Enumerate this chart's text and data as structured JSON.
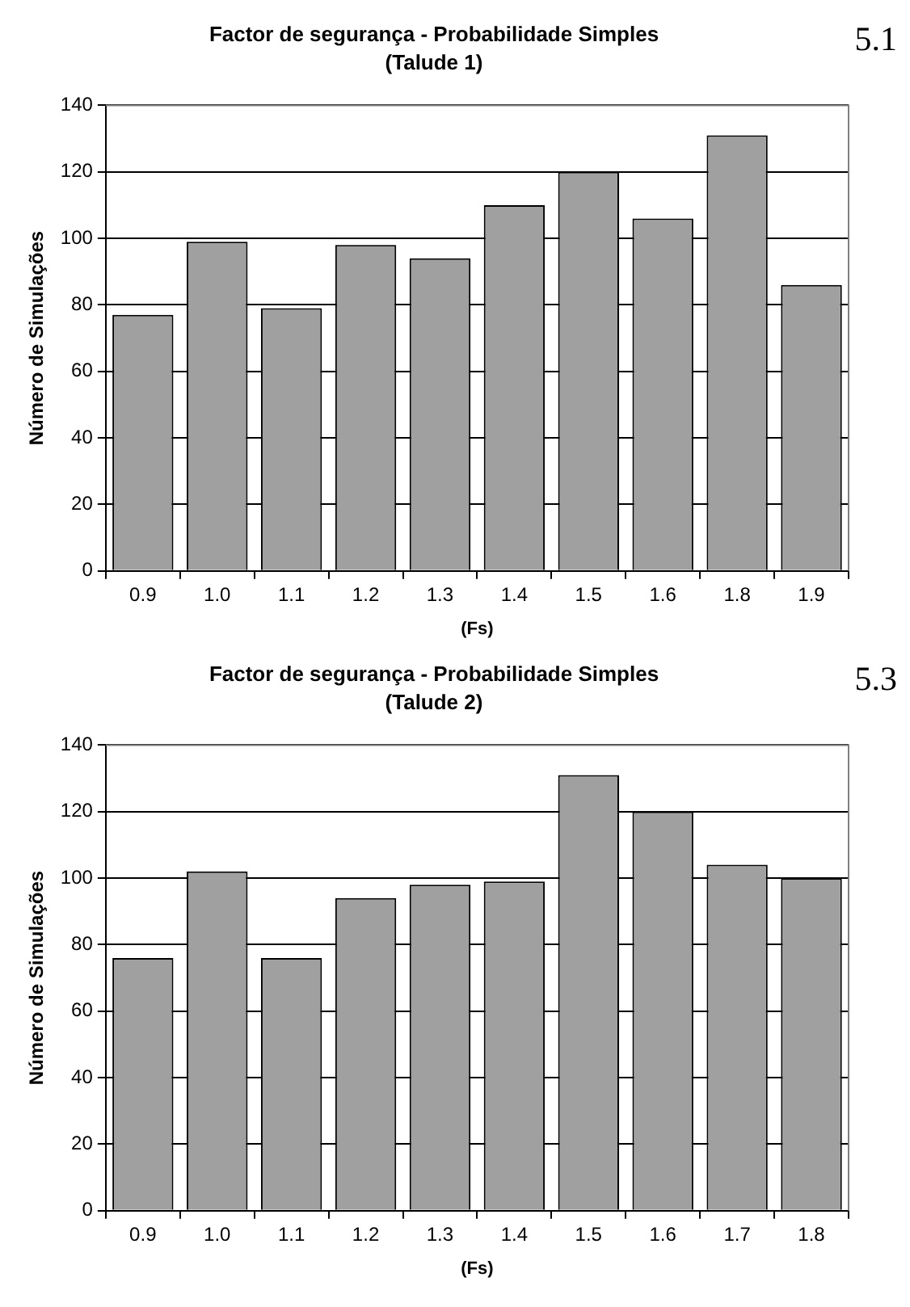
{
  "chart_data": [
    {
      "type": "bar",
      "title": "Factor de segurança - Probabilidade Simples",
      "subtitle": "(Talude 1)",
      "xlabel": "(Fs)",
      "ylabel": "Número de Simulações",
      "annotations": [
        "5.1"
      ],
      "categories": [
        "0.9",
        "1.0",
        "1.1",
        "1.2",
        "1.3",
        "1.4",
        "1.5",
        "1.6",
        "1.8",
        "1.9"
      ],
      "values": [
        77,
        99,
        79,
        98,
        94,
        110,
        120,
        106,
        131,
        86
      ],
      "color": "#a0a0a0",
      "ylim": [
        0,
        140
      ],
      "yticks": [
        0,
        20,
        40,
        60,
        80,
        100,
        120,
        140
      ],
      "grid": "y",
      "legend": false
    },
    {
      "type": "bar",
      "title": "Factor de segurança - Probabilidade Simples",
      "subtitle": "(Talude 2)",
      "xlabel": "(Fs)",
      "ylabel": "Número de Simulações",
      "annotations": [
        "5.3"
      ],
      "categories": [
        "0.9",
        "1.0",
        "1.1",
        "1.2",
        "1.3",
        "1.4",
        "1.5",
        "1.6",
        "1.7",
        "1.8"
      ],
      "values": [
        76,
        102,
        76,
        94,
        98,
        99,
        131,
        120,
        104,
        100
      ],
      "color": "#a0a0a0",
      "ylim": [
        0,
        140
      ],
      "yticks": [
        0,
        20,
        40,
        60,
        80,
        100,
        120,
        140
      ],
      "grid": "y",
      "legend": false
    }
  ]
}
